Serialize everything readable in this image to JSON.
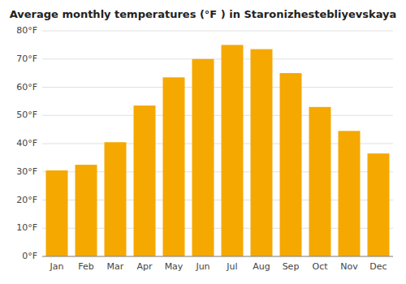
{
  "chart_data": {
    "type": "bar",
    "title": "Average monthly temperatures (°F ) in Staronizhestebliyevskaya",
    "categories": [
      "Jan",
      "Feb",
      "Mar",
      "Apr",
      "May",
      "Jun",
      "Jul",
      "Aug",
      "Sep",
      "Oct",
      "Nov",
      "Dec"
    ],
    "values": [
      30.5,
      32.5,
      40.5,
      53.5,
      63.5,
      70.0,
      75.0,
      73.5,
      65.0,
      53.0,
      44.5,
      36.5
    ],
    "color": "#F5A800",
    "ylim": [
      0,
      80
    ],
    "yticks": [
      {
        "value": 0,
        "label": "0°F"
      },
      {
        "value": 10,
        "label": "10°F"
      },
      {
        "value": 20,
        "label": "20°F"
      },
      {
        "value": 30,
        "label": "30°F"
      },
      {
        "value": 40,
        "label": "40°F"
      },
      {
        "value": 50,
        "label": "50°F"
      },
      {
        "value": 60,
        "label": "60°F"
      },
      {
        "value": 70,
        "label": "70°F"
      },
      {
        "value": 80,
        "label": "80°F"
      }
    ],
    "grid": true
  }
}
